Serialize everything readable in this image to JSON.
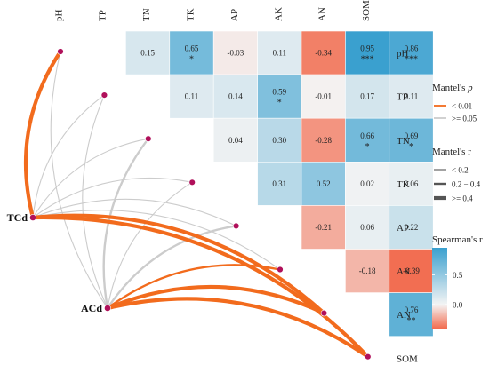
{
  "chart_data": {
    "type": "heatmap",
    "variables": [
      "pH",
      "TP",
      "TN",
      "TK",
      "AP",
      "AK",
      "AN",
      "SOM"
    ],
    "column_labels": [
      "pH",
      "TP",
      "TN",
      "TK",
      "AP",
      "AK",
      "AN",
      "SOM"
    ],
    "row_labels": [
      "pH",
      "TP",
      "TN",
      "TK",
      "AP",
      "AK",
      "AN",
      "SOM"
    ],
    "correlations": [
      {
        "a": "pH",
        "b": "TP",
        "r": 0.15,
        "sig": ""
      },
      {
        "a": "pH",
        "b": "TN",
        "r": 0.65,
        "sig": "*"
      },
      {
        "a": "pH",
        "b": "TK",
        "r": -0.03,
        "sig": ""
      },
      {
        "a": "pH",
        "b": "AP",
        "r": 0.11,
        "sig": ""
      },
      {
        "a": "pH",
        "b": "AK",
        "r": -0.34,
        "sig": ""
      },
      {
        "a": "pH",
        "b": "AN",
        "r": 0.95,
        "sig": "***"
      },
      {
        "a": "pH",
        "b": "SOM",
        "r": 0.86,
        "sig": "***"
      },
      {
        "a": "TP",
        "b": "TN",
        "r": 0.11,
        "sig": ""
      },
      {
        "a": "TP",
        "b": "TK",
        "r": 0.14,
        "sig": ""
      },
      {
        "a": "TP",
        "b": "AP",
        "r": 0.59,
        "sig": "*"
      },
      {
        "a": "TP",
        "b": "AK",
        "r": -0.01,
        "sig": ""
      },
      {
        "a": "TP",
        "b": "AN",
        "r": 0.17,
        "sig": ""
      },
      {
        "a": "TP",
        "b": "SOM",
        "r": 0.11,
        "sig": ""
      },
      {
        "a": "TN",
        "b": "TK",
        "r": 0.04,
        "sig": ""
      },
      {
        "a": "TN",
        "b": "AP",
        "r": 0.3,
        "sig": ""
      },
      {
        "a": "TN",
        "b": "AK",
        "r": -0.28,
        "sig": ""
      },
      {
        "a": "TN",
        "b": "AN",
        "r": 0.66,
        "sig": "*"
      },
      {
        "a": "TN",
        "b": "SOM",
        "r": 0.69,
        "sig": "*"
      },
      {
        "a": "TK",
        "b": "AP",
        "r": 0.31,
        "sig": ""
      },
      {
        "a": "TK",
        "b": "AK",
        "r": 0.52,
        "sig": ""
      },
      {
        "a": "TK",
        "b": "AN",
        "r": 0.02,
        "sig": ""
      },
      {
        "a": "TK",
        "b": "SOM",
        "r": 0.06,
        "sig": ""
      },
      {
        "a": "AP",
        "b": "AK",
        "r": -0.21,
        "sig": ""
      },
      {
        "a": "AP",
        "b": "AN",
        "r": 0.06,
        "sig": ""
      },
      {
        "a": "AP",
        "b": "SOM",
        "r": 0.22,
        "sig": ""
      },
      {
        "a": "AK",
        "b": "AN",
        "r": -0.18,
        "sig": ""
      },
      {
        "a": "AK",
        "b": "SOM",
        "r": -0.39,
        "sig": ""
      },
      {
        "a": "AN",
        "b": "SOM",
        "r": 0.76,
        "sig": "**"
      }
    ],
    "mantel": {
      "sources": [
        "TCd",
        "ACd"
      ],
      "links": [
        {
          "from": "TCd",
          "to": "pH",
          "p_class": "< 0.01",
          "r_class": ">= 0.4"
        },
        {
          "from": "TCd",
          "to": "TP",
          "p_class": ">= 0.05",
          "r_class": "< 0.2"
        },
        {
          "from": "TCd",
          "to": "TN",
          "p_class": ">= 0.05",
          "r_class": "< 0.2"
        },
        {
          "from": "TCd",
          "to": "TK",
          "p_class": ">= 0.05",
          "r_class": "< 0.2"
        },
        {
          "from": "TCd",
          "to": "AP",
          "p_class": ">= 0.05",
          "r_class": "< 0.2"
        },
        {
          "from": "TCd",
          "to": "AK",
          "p_class": ">= 0.05",
          "r_class": "< 0.2"
        },
        {
          "from": "TCd",
          "to": "AN",
          "p_class": "< 0.01",
          "r_class": ">= 0.4"
        },
        {
          "from": "TCd",
          "to": "SOM",
          "p_class": "< 0.01",
          "r_class": ">= 0.4"
        },
        {
          "from": "ACd",
          "to": "pH",
          "p_class": ">= 0.05",
          "r_class": "< 0.2"
        },
        {
          "from": "ACd",
          "to": "TP",
          "p_class": ">= 0.05",
          "r_class": "< 0.2"
        },
        {
          "from": "ACd",
          "to": "TN",
          "p_class": ">= 0.05",
          "r_class": "0.2 - 0.4"
        },
        {
          "from": "ACd",
          "to": "TK",
          "p_class": ">= 0.05",
          "r_class": "< 0.2"
        },
        {
          "from": "ACd",
          "to": "AP",
          "p_class": ">= 0.05",
          "r_class": "0.2 - 0.4"
        },
        {
          "from": "ACd",
          "to": "AK",
          "p_class": "< 0.01",
          "r_class": "0.2 - 0.4"
        },
        {
          "from": "ACd",
          "to": "AN",
          "p_class": "< 0.01",
          "r_class": ">= 0.4"
        },
        {
          "from": "ACd",
          "to": "SOM",
          "p_class": "< 0.01",
          "r_class": ">= 0.4"
        }
      ]
    },
    "legend": {
      "mantel_p": {
        "title": "Mantel's p",
        "items": [
          {
            "label": "< 0.01",
            "color": "#f26b1d"
          },
          {
            "label": ">= 0.05",
            "color": "#cccccc"
          }
        ]
      },
      "mantel_r": {
        "title": "Mantel's r",
        "items": [
          {
            "label": "< 0.2"
          },
          {
            "label": "0.2 − 0.4"
          },
          {
            "label": ">= 0.4"
          }
        ]
      },
      "spearman": {
        "title": "Spearman's r",
        "ticks": [
          "0.5",
          "0.0"
        ],
        "tick_values": [
          0.5,
          0.0
        ],
        "range": [
          -0.4,
          0.95
        ]
      },
      "placement": "right"
    },
    "colors": {
      "positive": "#3aa0cf",
      "neutral": "#f4f4f4",
      "negative": "#f26b4e",
      "significant_link": "#f26b1d",
      "nonsignificant_link": "#cccccc",
      "node": "#b0105a"
    }
  }
}
